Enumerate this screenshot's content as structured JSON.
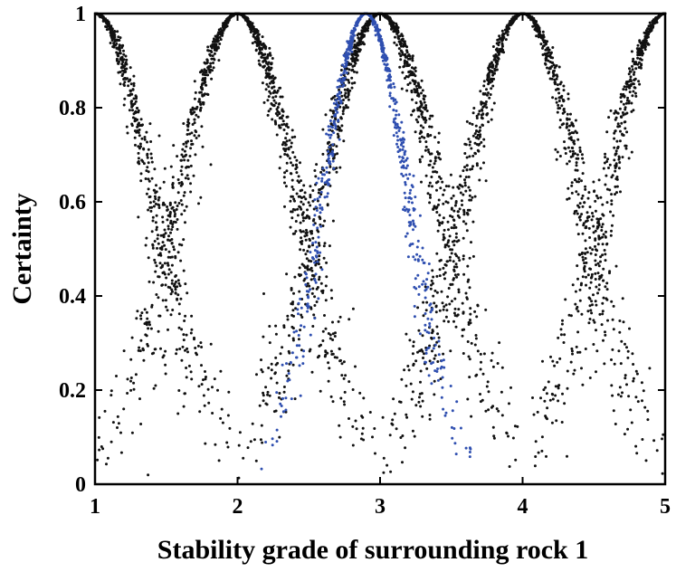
{
  "chart_data": {
    "type": "scatter",
    "title": "",
    "xlabel": "Stability grade of surrounding rock 1",
    "ylabel": "Certainty",
    "xlim": [
      1,
      5
    ],
    "ylim": [
      0,
      1
    ],
    "xticks": [
      "1",
      "2",
      "3",
      "4",
      "5"
    ],
    "yticks": [
      "0",
      "0.2",
      "0.4",
      "0.6",
      "0.8",
      "1"
    ],
    "grid": false,
    "legend": "none",
    "series": [
      {
        "color": "#111111",
        "shape": "normal-cloud",
        "expectation": 1,
        "entropy": 0.42,
        "hyper_entropy": 0.05,
        "drops": 520,
        "x_range": [
          1,
          1.95
        ]
      },
      {
        "color": "#111111",
        "shape": "normal-cloud",
        "expectation": 2,
        "entropy": 0.42,
        "hyper_entropy": 0.05,
        "drops": 1000,
        "x_range": [
          1,
          3
        ]
      },
      {
        "color": "#111111",
        "shape": "normal-cloud",
        "expectation": 3,
        "entropy": 0.42,
        "hyper_entropy": 0.05,
        "drops": 1000,
        "x_range": [
          2,
          4
        ]
      },
      {
        "color": "#111111",
        "shape": "normal-cloud",
        "expectation": 4,
        "entropy": 0.42,
        "hyper_entropy": 0.05,
        "drops": 1000,
        "x_range": [
          3,
          5
        ]
      },
      {
        "color": "#111111",
        "shape": "normal-cloud",
        "expectation": 5,
        "entropy": 0.42,
        "hyper_entropy": 0.05,
        "drops": 520,
        "x_range": [
          4.05,
          5
        ]
      },
      {
        "color": "#2f4fb0",
        "shape": "normal-cloud",
        "expectation": 2.9,
        "entropy": 0.3,
        "hyper_entropy": 0.025,
        "drops": 700,
        "x_range": [
          2.1,
          3.65
        ]
      }
    ]
  }
}
